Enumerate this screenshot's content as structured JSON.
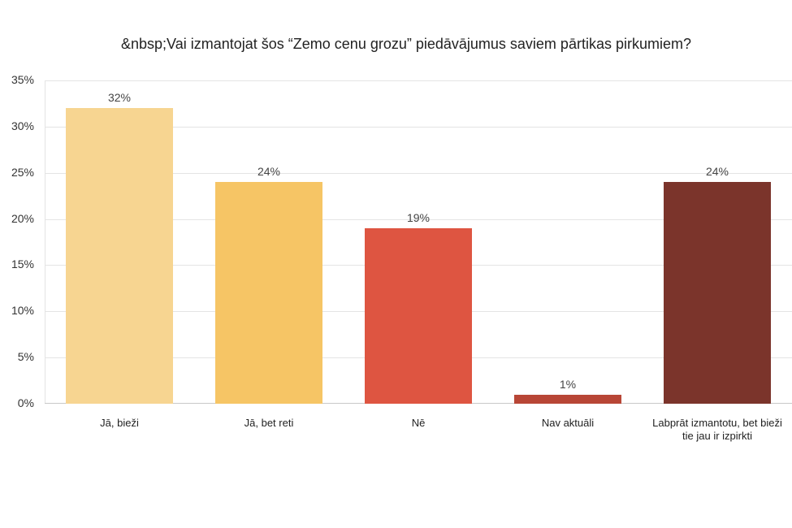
{
  "chart_data": {
    "type": "bar",
    "title": "&nbsp;Vai izmantojat šos “Zemo cenu grozu” piedāvājumus saviem pārtikas pirkumiem?",
    "categories": [
      "Jā, bieži",
      "Jā, bet reti",
      "Nē",
      "Nav aktuāli",
      "Labprāt izmantotu, bet bieži tie jau ir izpirkti"
    ],
    "values": [
      32,
      24,
      19,
      1,
      24
    ],
    "value_labels": [
      "32%",
      "24%",
      "19%",
      "1%",
      "24%"
    ],
    "colors": [
      "#f7d591",
      "#f6c565",
      "#de5541",
      "#b84636",
      "#7b342b"
    ],
    "xlabel": "",
    "ylabel": "",
    "ylim": [
      0,
      35
    ],
    "yticks": [
      "0%",
      "5%",
      "10%",
      "15%",
      "20%",
      "25%",
      "30%",
      "35%"
    ],
    "grid": true,
    "legend": "none"
  }
}
